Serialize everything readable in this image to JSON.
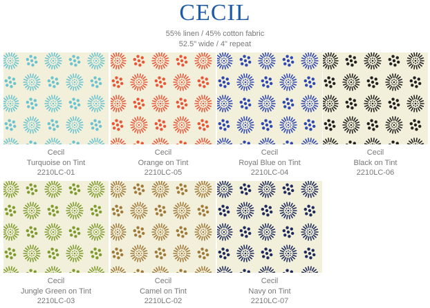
{
  "header": {
    "title": "CECIL",
    "subtitle_lines": [
      "55% linen / 45% cotton fabric",
      "52.5\" wide / 4\" repeat"
    ]
  },
  "swatches": [
    {
      "name": "Cecil",
      "colorway": "Turquoise on Tint",
      "code": "2210LC-01"
    },
    {
      "name": "Cecil",
      "colorway": "Orange on Tint",
      "code": "2210LC-05"
    },
    {
      "name": "Cecil",
      "colorway": "Royal Blue on Tint",
      "code": "2210LC-04"
    },
    {
      "name": "Cecil",
      "colorway": "Black on Tint",
      "code": "2210LC-06"
    },
    {
      "name": "Cecil",
      "colorway": "Jungle Green on Tint",
      "code": "2210LC-03"
    },
    {
      "name": "Cecil",
      "colorway": "Camel on Tint",
      "code": "2210LC-02"
    },
    {
      "name": "Cecil",
      "colorway": "Navy on Tint",
      "code": "2210LC-07"
    }
  ]
}
